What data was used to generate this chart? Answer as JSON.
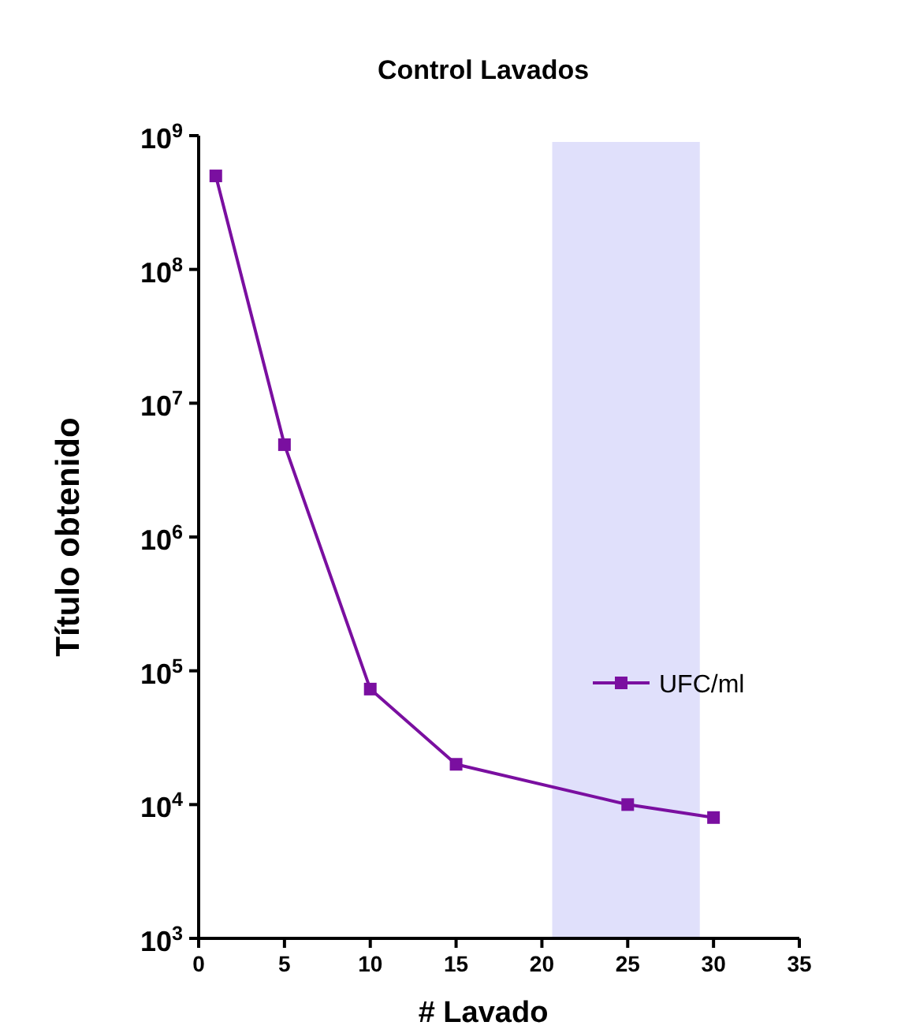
{
  "chart_data": {
    "type": "line",
    "title": "Control Lavados",
    "xlabel": "# Lavado",
    "ylabel": "Título obtenido",
    "x": [
      1,
      5,
      10,
      15,
      25,
      30
    ],
    "series": [
      {
        "name": "UFC/ml",
        "color": "#7a0fa0",
        "values": [
          500000000,
          4900000,
          73000,
          20000,
          10000,
          8000
        ]
      }
    ],
    "xlim": [
      0,
      35
    ],
    "xticks": [
      0,
      5,
      10,
      15,
      20,
      25,
      30,
      35
    ],
    "ylim": [
      1000,
      1000000000
    ],
    "yticks": [
      {
        "value": 1000,
        "label": "10$^{3}$"
      },
      {
        "value": 10000,
        "label": "10$^{4}$"
      },
      {
        "value": 100000,
        "label": "10$^{5}$"
      },
      {
        "value": 1000000,
        "label": "10$^{6}$"
      },
      {
        "value": 10000000,
        "label": "10$^{7}$"
      },
      {
        "value": 100000000,
        "label": "10$^{8}$"
      },
      {
        "value": 1000000000,
        "label": "10$^{9}$"
      }
    ],
    "log": "y",
    "marker": "square",
    "line_style": "solid",
    "legend": "right",
    "grid": false,
    "bands": [
      {
        "axis": "x",
        "from": 20.6,
        "to": 29.2,
        "color": "#e0e0fb"
      }
    ]
  }
}
